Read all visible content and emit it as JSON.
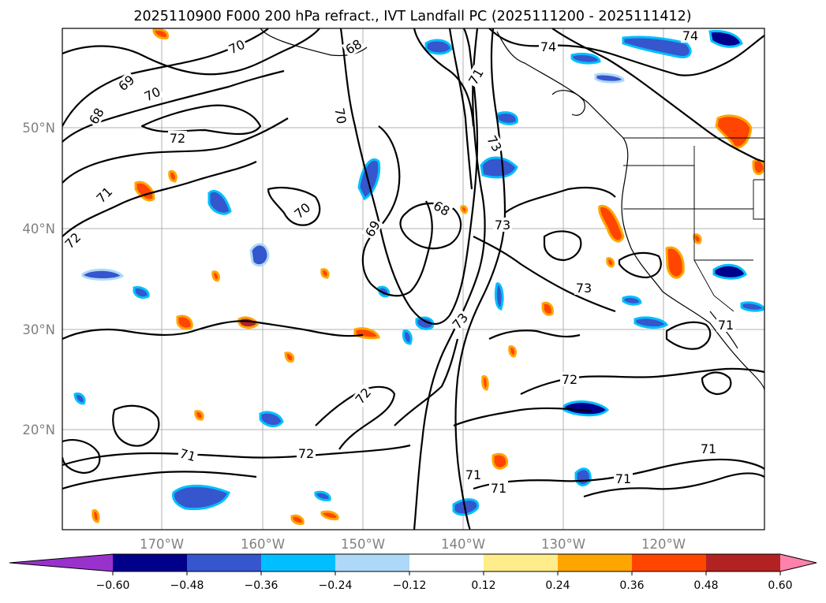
{
  "title": "2025110900 F000 200 hPa refract., IVT Landfall PC (2025111200 - 2025111412)",
  "map": {
    "lat_labels": [
      "50°N",
      "40°N",
      "30°N",
      "20°N"
    ],
    "lon_labels": [
      "170°W",
      "160°W",
      "150°W",
      "140°W",
      "130°W",
      "120°W"
    ]
  },
  "contour_labels": [
    {
      "name": "contour-label-70-nw",
      "text": "70"
    },
    {
      "name": "contour-label-68-n",
      "text": "68"
    },
    {
      "name": "contour-label-74-ne",
      "text": "74"
    },
    {
      "name": "contour-label-74-ne2",
      "text": "74"
    },
    {
      "name": "contour-label-69-nw",
      "text": "69"
    },
    {
      "name": "contour-label-70-nw2",
      "text": "70"
    },
    {
      "name": "contour-label-68-nw",
      "text": "68"
    },
    {
      "name": "contour-label-71-n",
      "text": "71"
    },
    {
      "name": "contour-label-70-c",
      "text": "70"
    },
    {
      "name": "contour-label-72-w",
      "text": "72"
    },
    {
      "name": "contour-label-73-ne",
      "text": "73"
    },
    {
      "name": "contour-label-71-w",
      "text": "71"
    },
    {
      "name": "contour-label-70-c2",
      "text": "70"
    },
    {
      "name": "contour-label-68-c",
      "text": "68"
    },
    {
      "name": "contour-label-69-c",
      "text": "69"
    },
    {
      "name": "contour-label-73-c",
      "text": "73"
    },
    {
      "name": "contour-label-72-w2",
      "text": "72"
    },
    {
      "name": "contour-label-73-e",
      "text": "73"
    },
    {
      "name": "contour-label-73-c2",
      "text": "73"
    },
    {
      "name": "contour-label-71-e",
      "text": "71"
    },
    {
      "name": "contour-label-72-e",
      "text": "72"
    },
    {
      "name": "contour-label-72-c",
      "text": "72"
    },
    {
      "name": "contour-label-72-s",
      "text": "72"
    },
    {
      "name": "contour-label-71-sw",
      "text": "71"
    },
    {
      "name": "contour-label-71-s",
      "text": "71"
    },
    {
      "name": "contour-label-71-s2",
      "text": "71"
    },
    {
      "name": "contour-label-71-se",
      "text": "71"
    },
    {
      "name": "contour-label-71-se2",
      "text": "71"
    }
  ],
  "colorbar": {
    "ticks": [
      "−0.60",
      "−0.48",
      "−0.36",
      "−0.24",
      "−0.12",
      "0.12",
      "0.24",
      "0.36",
      "0.48",
      "0.60"
    ],
    "colors": [
      "#9932cc",
      "#00008b",
      "#3556cc",
      "#00bfff",
      "#add8f7",
      "#ffffff",
      "#ffec8b",
      "#ffa500",
      "#ff4500",
      "#b22222",
      "#ff82ab"
    ]
  }
}
